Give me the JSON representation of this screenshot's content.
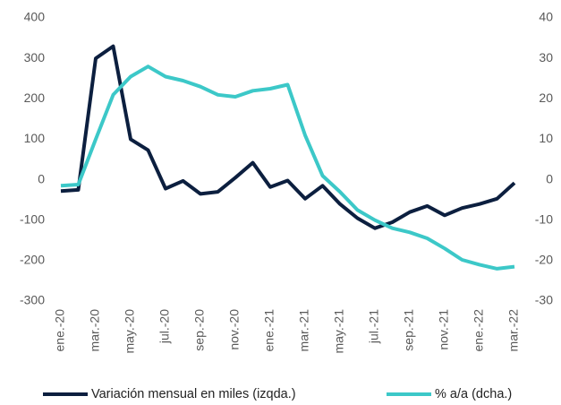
{
  "chart_data": {
    "type": "line",
    "categories": [
      "ene.-20",
      null,
      "mar.-20",
      null,
      "may.-20",
      null,
      "jul.-20",
      null,
      "sep.-20",
      null,
      "nov.-20",
      null,
      "ene.-21",
      null,
      "mar.-21",
      null,
      "may.-21",
      null,
      "jul.-21",
      null,
      "sep.-21",
      null,
      "nov.-21",
      null,
      "ene.-22",
      null,
      "mar.-22"
    ],
    "series": [
      {
        "name": "Variación mensual en miles (izqda.)",
        "color": "#0c1f3f",
        "axis": "y",
        "values": [
          -28,
          -25,
          300,
          330,
          100,
          73,
          -22,
          -3,
          -35,
          -30,
          5,
          42,
          -18,
          -2,
          -47,
          -15,
          -60,
          -95,
          -120,
          -105,
          -80,
          -65,
          -88,
          -70,
          -60,
          -47,
          -8
        ]
      },
      {
        "name": "% a/a (dcha.)",
        "color": "#3cc8c8",
        "axis": "y2",
        "values": [
          -1.5,
          -1.2,
          10,
          21,
          25.5,
          28,
          25.5,
          24.5,
          23,
          21,
          20.5,
          22,
          22.5,
          23.5,
          11,
          1,
          -3,
          -7.5,
          -10,
          -12,
          -13,
          -14.5,
          -17,
          -19.8,
          -21,
          -22,
          -21.5
        ]
      }
    ],
    "ylim": [
      -300,
      400
    ],
    "yticks": [
      -300,
      -200,
      -100,
      0,
      100,
      200,
      300,
      400
    ],
    "y2lim": [
      -30,
      40
    ],
    "y2ticks": [
      -30,
      -20,
      -10,
      0,
      10,
      20,
      30,
      40
    ],
    "grid": false
  }
}
